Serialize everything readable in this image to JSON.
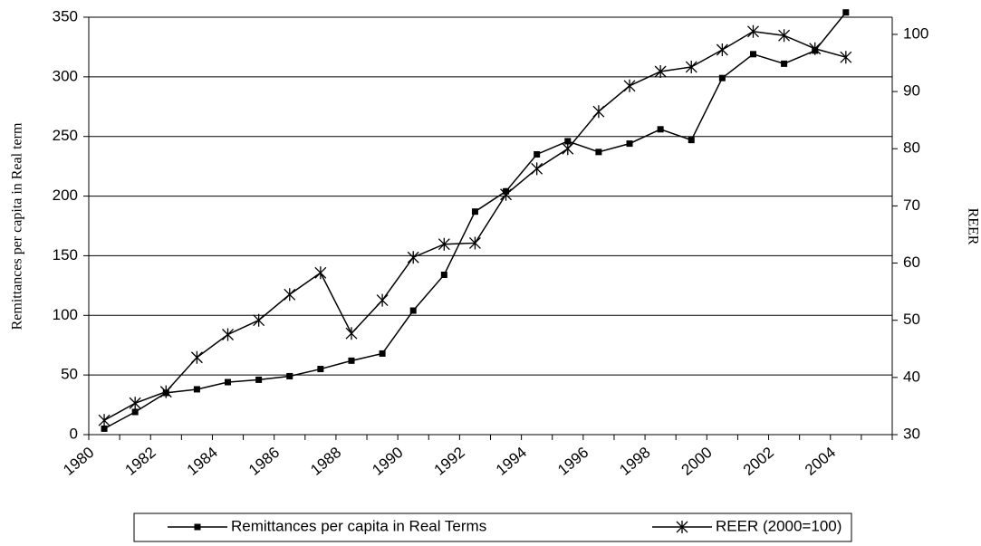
{
  "chart_data": {
    "type": "line",
    "categories": [
      "1980",
      null,
      "1982",
      null,
      "1984",
      null,
      "1986",
      null,
      "1988",
      null,
      "1990",
      null,
      "1992",
      null,
      "1994",
      null,
      "1996",
      null,
      "1998",
      null,
      "2000",
      null,
      "2002",
      null,
      "2004",
      null
    ],
    "y_label": "Remittances per capita in Real term",
    "y2_label": "REER",
    "ylim": [
      0,
      350
    ],
    "yticks": [
      0,
      50,
      100,
      150,
      200,
      250,
      300,
      350
    ],
    "y2lim": [
      30,
      103
    ],
    "y2ticks": [
      30,
      40,
      50,
      60,
      70,
      80,
      90,
      100
    ],
    "grid": true,
    "legend": "bottom",
    "series": [
      {
        "name": "Remittances per capita in Real Terms",
        "color": "#000000",
        "marker": "square",
        "values": [
          5,
          19,
          35,
          38,
          44,
          46,
          49,
          55,
          62,
          68,
          104,
          134,
          187,
          204,
          235,
          246,
          237,
          244,
          256,
          247,
          299,
          319,
          311,
          322,
          354,
          null
        ]
      },
      {
        "name": "REER (2000=100)",
        "color": "#000000",
        "marker": "star",
        "axis": "y2",
        "values": [
          32.5,
          35.5,
          37.5,
          43.5,
          47.5,
          50,
          54.5,
          58.3,
          47.7,
          53.5,
          61,
          63.3,
          63.5,
          72,
          76.5,
          80,
          86.5,
          91,
          93.5,
          94.3,
          97.3,
          100.5,
          99.8,
          97.5,
          96,
          null
        ]
      }
    ]
  }
}
